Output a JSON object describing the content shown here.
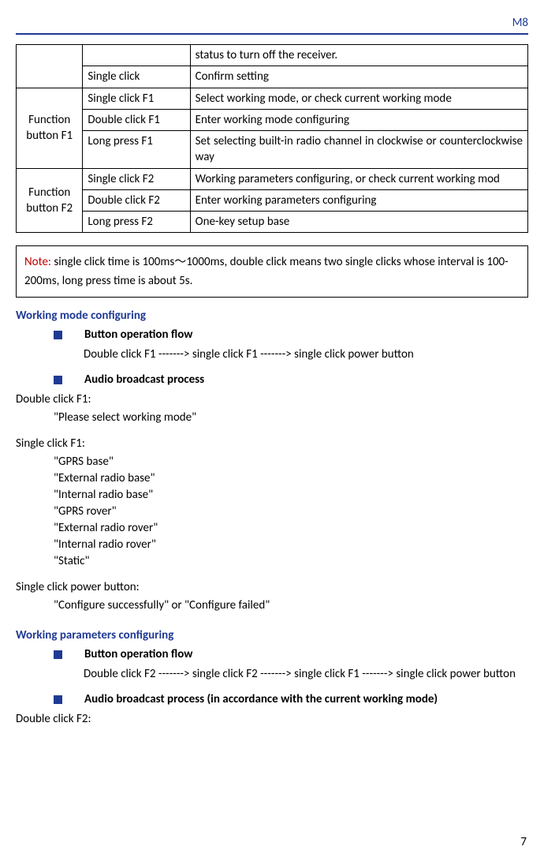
{
  "header": {
    "label": "M8"
  },
  "table": {
    "r1": {
      "col2": "",
      "col3": "status to turn off the receiver."
    },
    "r2": {
      "col2": "Single click",
      "col3": "Confirm setting"
    },
    "g1": {
      "label": "Function button F1",
      "ra": {
        "col2": "Single click F1",
        "col3": "Select working mode, or check current working mode"
      },
      "rb": {
        "col2": "Double click F1",
        "col3": "Enter working mode configuring"
      },
      "rc": {
        "col2": "Long press F1",
        "col3": "Set selecting built-in radio channel in clockwise or counterclockwise way"
      }
    },
    "g2": {
      "label": "Function button F2",
      "ra": {
        "col2": "Single click F2",
        "col3": "Working parameters configuring, or check current working mod"
      },
      "rb": {
        "col2": "Double click F2",
        "col3": "Enter working parameters configuring"
      },
      "rc": {
        "col2": "Long press F2",
        "col3": "One-key setup base"
      }
    }
  },
  "note": {
    "label": "Note:",
    "text": " single click time is 100ms～1000ms, double click means two single clicks whose interval is 100-200ms, long press time is about 5s."
  },
  "sec1": {
    "title": "Working mode configuring",
    "b1": "Button operation flow",
    "flow": "Double click F1 -------> single click F1 -------> single click power button",
    "b2": "Audio broadcast process",
    "p1_h": "Double click F1:",
    "p1_1": "\"Please select working mode\"",
    "p2_h": "Single click F1:",
    "p2_1": "\"GPRS base\"",
    "p2_2": "\"External radio base\"",
    "p2_3": "\"Internal radio base\"",
    "p2_4": "\"GPRS rover\"",
    "p2_5": "\"External radio rover\"",
    "p2_6": "\"Internal radio rover\"",
    "p2_7": "\"Static\"",
    "p3_h": "Single click power button:",
    "p3_1": "\"Configure successfully\" or \"Configure failed\""
  },
  "sec2": {
    "title": "Working parameters configuring",
    "b1": "Button operation flow",
    "flow": "Double click F2 -------> single click F2 -------> single click F1 -------> single click power button",
    "b2": "Audio broadcast process (in accordance with the current working mode)",
    "p1_h": "Double click F2:"
  },
  "page": "7"
}
